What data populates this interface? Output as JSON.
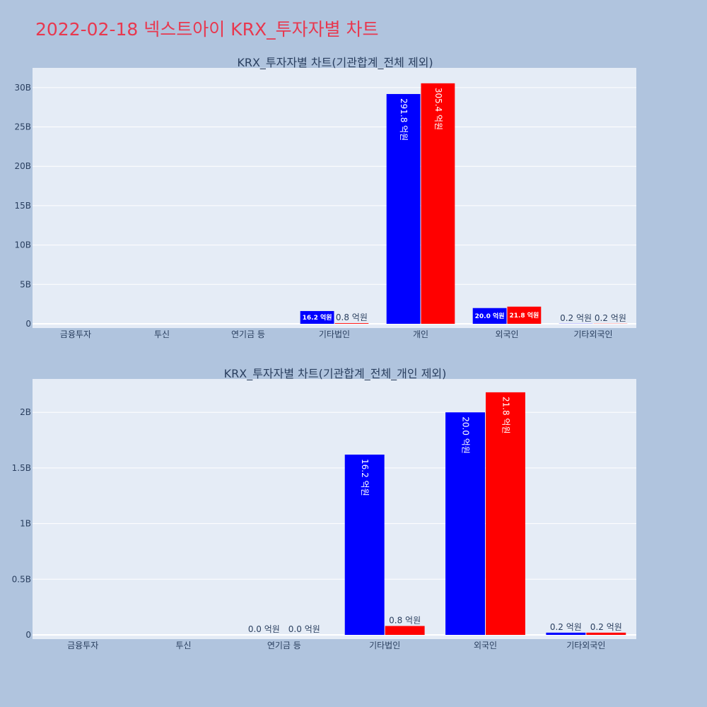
{
  "page": {
    "title": "2022-02-18 넥스트아이 KRX_투자자별 차트"
  },
  "colors": {
    "buy": "#0000ff",
    "sell": "#ff0000",
    "plot_bg": "#e5ecf6",
    "paper_bg": "#b0c4de",
    "grid": "#ffffff",
    "text": "#2a3f5f"
  },
  "chart_data": [
    {
      "type": "bar",
      "title": "KRX_투자자별 차트(기관합계_전체 제외)",
      "categories": [
        "금융투자",
        "투신",
        "연기금 등",
        "기타법인",
        "개인",
        "외국인",
        "기타외국인"
      ],
      "series": [
        {
          "values": [
            0,
            0,
            0,
            1620000000,
            29180000000,
            2000000000,
            20000000
          ]
        },
        {
          "values": [
            0,
            0,
            0,
            80000000,
            30540000000,
            2180000000,
            20000000
          ]
        }
      ],
      "data_labels": [
        [
          "",
          "",
          "",
          "16.2 억원",
          "291.8 억원",
          "20.0 억원",
          "0.2 억원"
        ],
        [
          "",
          "",
          "",
          "0.8 억원",
          "305.4 억원",
          "21.8 억원",
          "0.2 억원"
        ]
      ],
      "ylim": [
        0,
        32500000000
      ],
      "yticks": [
        {
          "value": 0,
          "label": "0"
        },
        {
          "value": 5000000000,
          "label": "5B"
        },
        {
          "value": 10000000000,
          "label": "10B"
        },
        {
          "value": 15000000000,
          "label": "15B"
        },
        {
          "value": 20000000000,
          "label": "20B"
        },
        {
          "value": 25000000000,
          "label": "25B"
        },
        {
          "value": 30000000000,
          "label": "30B"
        }
      ],
      "grid": true,
      "legend": "none"
    },
    {
      "type": "bar",
      "title": "KRX_투자자별 차트(기관합계_전체_개인 제외)",
      "categories": [
        "금융투자",
        "투신",
        "연기금 등",
        "기타법인",
        "외국인",
        "기타외국인"
      ],
      "series": [
        {
          "values": [
            0,
            0,
            0,
            1620000000,
            2000000000,
            20000000
          ]
        },
        {
          "values": [
            0,
            0,
            0,
            80000000,
            2180000000,
            20000000
          ]
        }
      ],
      "data_labels": [
        [
          "",
          "",
          "0.0 억원",
          "16.2 억원",
          "20.0 억원",
          "0.2 억원"
        ],
        [
          "",
          "",
          "0.0 억원",
          "0.8 억원",
          "21.8 억원",
          "0.2 억원"
        ]
      ],
      "ylim": [
        0,
        2300000000
      ],
      "yticks": [
        {
          "value": 0,
          "label": "0"
        },
        {
          "value": 500000000,
          "label": "0.5B"
        },
        {
          "value": 1000000000,
          "label": "1B"
        },
        {
          "value": 1500000000,
          "label": "1.5B"
        },
        {
          "value": 2000000000,
          "label": "2B"
        }
      ],
      "grid": true,
      "legend": "none"
    }
  ]
}
